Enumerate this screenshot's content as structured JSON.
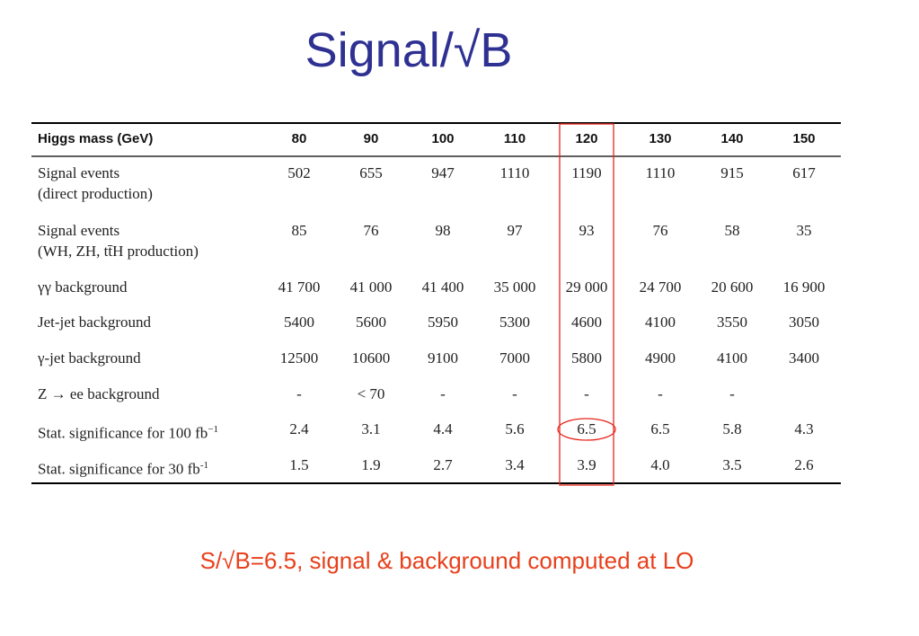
{
  "title": "Signal/√B",
  "table": {
    "header": [
      "Higgs mass (GeV)",
      "80",
      "90",
      "100",
      "110",
      "120",
      "130",
      "140",
      "150"
    ],
    "rows": [
      {
        "label": [
          "Signal events",
          "(direct production)"
        ],
        "cells": [
          "502",
          "655",
          "947",
          "1110",
          "1190",
          "1110",
          "915",
          "617"
        ]
      },
      {
        "label": [
          "Signal events",
          "(WH, ZH, tt̄H production)"
        ],
        "cells": [
          "85",
          "76",
          "98",
          "97",
          "93",
          "76",
          "58",
          "35"
        ]
      },
      {
        "label": [
          "γγ background"
        ],
        "cells": [
          "41 700",
          "41 000",
          "41 400",
          "35 000",
          "29 000",
          "24 700",
          "20 600",
          "16 900"
        ]
      },
      {
        "label": [
          "Jet-jet background"
        ],
        "cells": [
          "5400",
          "5600",
          "5950",
          "5300",
          "4600",
          "4100",
          "3550",
          "3050"
        ]
      },
      {
        "label": [
          "γ-jet background"
        ],
        "cells": [
          "12500",
          "10600",
          "9100",
          "7000",
          "5800",
          "4900",
          "4100",
          "3400"
        ]
      },
      {
        "label": [
          "Z → ee background"
        ],
        "cells": [
          "-",
          "< 70",
          "-",
          "-",
          "-",
          "-",
          "-",
          null
        ]
      },
      {
        "label": [
          "Stat. significance for 100 fb"
        ],
        "sup": "−1",
        "cells": [
          "2.4",
          "3.1",
          "4.4",
          "5.6",
          "6.5",
          "6.5",
          "5.8",
          "4.3"
        ]
      },
      {
        "label": [
          "Stat. significance for 30 fb"
        ],
        "sup": "-1",
        "cells": [
          "1.5",
          "1.9",
          "2.7",
          "3.4",
          "3.9",
          "4.0",
          "3.5",
          "2.6"
        ]
      }
    ]
  },
  "note": "S/√B=6.5, signal & background computed at LO"
}
